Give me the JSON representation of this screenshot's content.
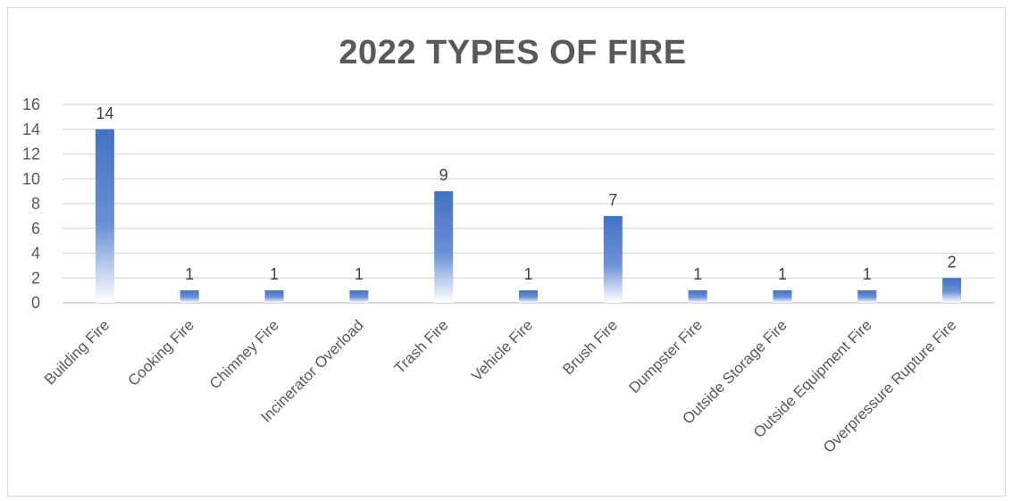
{
  "chart_data": {
    "type": "bar",
    "title": "2022 TYPES OF FIRE",
    "xlabel": "",
    "ylabel": "",
    "categories": [
      "Building Fire",
      "Cooking Fire",
      "Chimney Fire",
      "Incinerator Overload",
      "Trash Fire",
      "Vehicle Fire",
      "Brush Fire",
      "Dumpster Fire",
      "Outside Storage Fire",
      "Outside Equipment Fire",
      "Overpressure Rupture Fire"
    ],
    "values": [
      14,
      1,
      1,
      1,
      9,
      1,
      7,
      1,
      1,
      1,
      2
    ],
    "ylim": [
      0,
      16
    ],
    "yticks": [
      0,
      2,
      4,
      6,
      8,
      10,
      12,
      14,
      16
    ],
    "grid": true,
    "legend": "none",
    "data_labels": true,
    "colors": {
      "bar_top": "#4472c4",
      "bar_bottom": "#ffffff",
      "grid": "#d9d9d9",
      "text": "#595959"
    }
  }
}
